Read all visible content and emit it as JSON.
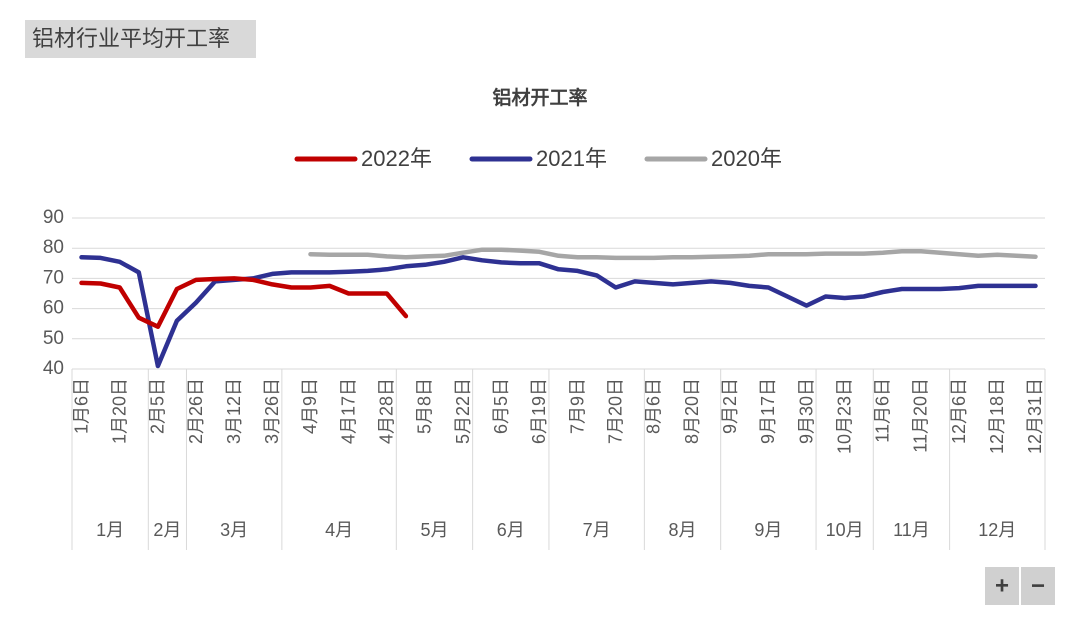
{
  "header": {
    "title": "铝材行业平均开工率"
  },
  "controls": [
    "+",
    "−"
  ],
  "chart_data": {
    "type": "line",
    "title": "铝材开工率",
    "groups": [
      {
        "label": "1月",
        "categories": [
          "1月6日",
          null,
          "1月20日",
          null
        ]
      },
      {
        "label": "2月",
        "categories": [
          "2月5日",
          null
        ]
      },
      {
        "label": "3月",
        "categories": [
          "2月26日",
          null,
          "3月12日",
          null,
          "3月26日"
        ]
      },
      {
        "label": "4月",
        "categories": [
          null,
          "4月9日",
          null,
          "4月17日",
          null,
          "4月28日"
        ]
      },
      {
        "label": "5月",
        "categories": [
          null,
          "5月8日",
          null,
          "5月22日"
        ]
      },
      {
        "label": "6月",
        "categories": [
          null,
          "6月5日",
          null,
          "6月19日"
        ]
      },
      {
        "label": "7月",
        "categories": [
          null,
          "7月9日",
          null,
          "7月20日",
          null
        ]
      },
      {
        "label": "8月",
        "categories": [
          "8月6日",
          null,
          "8月20日",
          null
        ]
      },
      {
        "label": "9月",
        "categories": [
          "9月2日",
          null,
          "9月17日",
          null,
          "9月30日"
        ]
      },
      {
        "label": "10月",
        "categories": [
          null,
          "10月23日",
          null
        ]
      },
      {
        "label": "11月",
        "categories": [
          "11月6日",
          null,
          "11月20日",
          null
        ]
      },
      {
        "label": "12月",
        "categories": [
          "12月6日",
          null,
          "12月18日",
          null,
          "12月31日"
        ]
      }
    ],
    "series": [
      {
        "name": "2022年",
        "color": "#c00000",
        "values": [
          68.5,
          68.3,
          67,
          57,
          54,
          66.5,
          69.5,
          69.8,
          70,
          69.5,
          68,
          67,
          67,
          67.5,
          65,
          65,
          65,
          57.5,
          null,
          null,
          null,
          null,
          null,
          null,
          null,
          null,
          null,
          null,
          null,
          null,
          null,
          null,
          null,
          null,
          null,
          null,
          null,
          null,
          null,
          null,
          null,
          null,
          null,
          null,
          null,
          null,
          null,
          null,
          null,
          null,
          null
        ]
      },
      {
        "name": "2021年",
        "color": "#2e3192",
        "values": [
          77,
          76.8,
          75.5,
          72,
          41,
          56,
          62,
          69,
          69.5,
          70,
          71.5,
          72,
          72,
          72,
          72.2,
          72.5,
          73,
          74,
          74.5,
          75.5,
          77,
          76,
          75.3,
          75,
          75,
          73,
          72.5,
          71,
          67,
          69,
          68.5,
          68,
          68.5,
          69,
          68.5,
          67.5,
          67,
          64,
          61,
          64,
          63.5,
          64,
          65.5,
          66.5,
          66.5,
          66.5,
          66.8,
          67.5,
          67.5,
          67.5,
          67.5
        ]
      },
      {
        "name": "2020年",
        "color": "#a6a6a6",
        "values": [
          null,
          null,
          null,
          null,
          null,
          null,
          null,
          null,
          null,
          null,
          null,
          null,
          78,
          77.8,
          77.8,
          77.8,
          77.3,
          77,
          77.3,
          77.5,
          78.5,
          79.5,
          79.5,
          79.2,
          78.8,
          77.5,
          77,
          77,
          76.8,
          76.8,
          76.8,
          77,
          77,
          77.2,
          77.3,
          77.5,
          78,
          78,
          78,
          78.2,
          78.2,
          78.2,
          78.5,
          79,
          79,
          78.5,
          78,
          77.5,
          77.8,
          77.5,
          77.2
        ]
      }
    ],
    "ylim": [
      40,
      90
    ],
    "yticks": [
      40,
      50,
      60,
      70,
      80,
      90
    ],
    "grid": true,
    "legend": "top"
  }
}
